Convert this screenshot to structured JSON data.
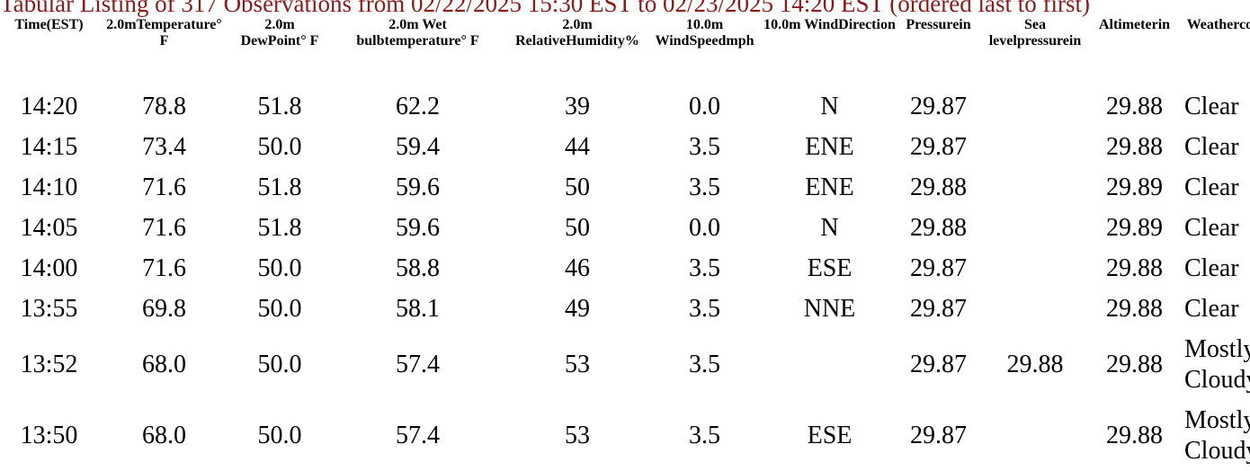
{
  "header": {
    "title": "Tabular Listing of 317 Observations from 02/22/2025 15:30 EST to 02/23/2025 14:20 EST (ordered last to first)"
  },
  "table": {
    "columns": [
      [
        "Time",
        "(EST)"
      ],
      [
        "2.0m",
        "Temperature",
        "° F"
      ],
      [
        "2.0m Dew",
        "Point",
        "° F"
      ],
      [
        "2.0m Wet bulb",
        "temperature",
        "° F"
      ],
      [
        "2.0m Relative",
        "Humidity",
        "%"
      ],
      [
        "10.0m Wind",
        "Speed",
        "mph"
      ],
      [
        "10.0m Wind",
        "Direction"
      ],
      [
        "Pressure",
        "in"
      ],
      [
        "Sea level",
        "pressure",
        "in"
      ],
      [
        "Altimeter",
        "in"
      ],
      [
        "Weather",
        "conditions"
      ]
    ],
    "rows": [
      [
        "14:20",
        "78.8",
        "51.8",
        "62.2",
        "39",
        "0.0",
        "N",
        "29.87",
        null,
        "29.88",
        "Clear"
      ],
      [
        "14:15",
        "73.4",
        "50.0",
        "59.4",
        "44",
        "3.5",
        "ENE",
        "29.87",
        null,
        "29.88",
        "Clear"
      ],
      [
        "14:10",
        "71.6",
        "51.8",
        "59.6",
        "50",
        "3.5",
        "ENE",
        "29.88",
        null,
        "29.89",
        "Clear"
      ],
      [
        "14:05",
        "71.6",
        "51.8",
        "59.6",
        "50",
        "0.0",
        "N",
        "29.88",
        null,
        "29.89",
        "Clear"
      ],
      [
        "14:00",
        "71.6",
        "50.0",
        "58.8",
        "46",
        "3.5",
        "ESE",
        "29.87",
        null,
        "29.88",
        "Clear"
      ],
      [
        "13:55",
        "69.8",
        "50.0",
        "58.1",
        "49",
        "3.5",
        "NNE",
        "29.87",
        null,
        "29.88",
        "Clear"
      ],
      [
        "13:52",
        "68.0",
        "50.0",
        "57.4",
        "53",
        "3.5",
        null,
        "29.87",
        "29.88",
        "29.88",
        "Mostly Cloudy"
      ],
      [
        "13:50",
        "68.0",
        "50.0",
        "57.4",
        "53",
        "3.5",
        "ESE",
        "29.87",
        null,
        "29.88",
        "Mostly Cloudy"
      ]
    ]
  }
}
